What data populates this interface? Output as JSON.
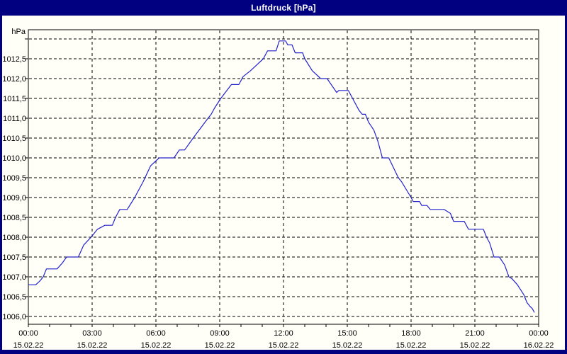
{
  "window": {
    "title": "Luftdruck [hPa]"
  },
  "colors": {
    "frame": "#000080",
    "titlebar_bg": "#000080",
    "title_text": "#ffffff",
    "panel_bg": "#fffff8",
    "grid": "#000000",
    "axis": "#000000",
    "label_text": "#000000",
    "series_line": "#2222cc"
  },
  "chart_data": {
    "type": "line",
    "title": "Luftdruck [hPa]",
    "unit_label": "hPa",
    "grid": true,
    "legend_position": "none",
    "y_axis": {
      "ylim_gridlines": [
        1006.0,
        1013.0
      ],
      "step": 0.5,
      "decimal_separator": ",",
      "ticks": [
        {
          "value": 1013.0,
          "label": ""
        },
        {
          "value": 1012.5,
          "label": "1012,5"
        },
        {
          "value": 1012.0,
          "label": "1012,0"
        },
        {
          "value": 1011.5,
          "label": "1011,5"
        },
        {
          "value": 1011.0,
          "label": "1011,0"
        },
        {
          "value": 1010.5,
          "label": "1010,5"
        },
        {
          "value": 1010.0,
          "label": "1010,0"
        },
        {
          "value": 1009.5,
          "label": "1009,5"
        },
        {
          "value": 1009.0,
          "label": "1009,0"
        },
        {
          "value": 1008.5,
          "label": "1008,5"
        },
        {
          "value": 1008.0,
          "label": "1008,0"
        },
        {
          "value": 1007.5,
          "label": "1007,5"
        },
        {
          "value": 1007.0,
          "label": "1007,0"
        },
        {
          "value": 1006.5,
          "label": "1006,5"
        },
        {
          "value": 1006.0,
          "label": "1006,0"
        }
      ]
    },
    "x_axis": {
      "hours_span": 24,
      "minor_tick_hours": 1,
      "major_tick_hours": 3,
      "major_ticks": [
        {
          "hour": 0,
          "time": "00:00",
          "date": "15.02.22"
        },
        {
          "hour": 3,
          "time": "03:00",
          "date": "15.02.22"
        },
        {
          "hour": 6,
          "time": "06:00",
          "date": "15.02.22"
        },
        {
          "hour": 9,
          "time": "09:00",
          "date": "15.02.22"
        },
        {
          "hour": 12,
          "time": "12:00",
          "date": "15.02.22"
        },
        {
          "hour": 15,
          "time": "15:00",
          "date": "15.02.22"
        },
        {
          "hour": 18,
          "time": "18:00",
          "date": "15.02.22"
        },
        {
          "hour": 21,
          "time": "21:00",
          "date": "15.02.22"
        },
        {
          "hour": 24,
          "time": "00:00",
          "date": "16.02.22"
        }
      ]
    },
    "series": [
      {
        "name": "Luftdruck",
        "color": "#2222cc",
        "points_hour_hpa": [
          [
            0.0,
            1006.8
          ],
          [
            0.35,
            1006.8
          ],
          [
            0.55,
            1006.9
          ],
          [
            0.7,
            1007.0
          ],
          [
            0.85,
            1007.2
          ],
          [
            1.35,
            1007.2
          ],
          [
            1.6,
            1007.35
          ],
          [
            1.8,
            1007.5
          ],
          [
            2.35,
            1007.5
          ],
          [
            2.6,
            1007.8
          ],
          [
            2.95,
            1008.0
          ],
          [
            3.25,
            1008.2
          ],
          [
            3.6,
            1008.3
          ],
          [
            3.95,
            1008.3
          ],
          [
            4.1,
            1008.5
          ],
          [
            4.3,
            1008.7
          ],
          [
            4.65,
            1008.7
          ],
          [
            5.0,
            1009.0
          ],
          [
            5.4,
            1009.4
          ],
          [
            5.75,
            1009.8
          ],
          [
            6.15,
            1010.0
          ],
          [
            6.85,
            1010.0
          ],
          [
            7.1,
            1010.2
          ],
          [
            7.35,
            1010.2
          ],
          [
            7.75,
            1010.5
          ],
          [
            8.1,
            1010.75
          ],
          [
            8.45,
            1011.0
          ],
          [
            8.6,
            1011.1
          ],
          [
            8.75,
            1011.25
          ],
          [
            9.05,
            1011.5
          ],
          [
            9.55,
            1011.85
          ],
          [
            9.9,
            1011.85
          ],
          [
            10.1,
            1012.05
          ],
          [
            10.45,
            1012.2
          ],
          [
            10.75,
            1012.35
          ],
          [
            11.05,
            1012.5
          ],
          [
            11.25,
            1012.7
          ],
          [
            11.65,
            1012.7
          ],
          [
            11.8,
            1012.95
          ],
          [
            12.1,
            1012.95
          ],
          [
            12.2,
            1012.85
          ],
          [
            12.4,
            1012.85
          ],
          [
            12.55,
            1012.65
          ],
          [
            12.9,
            1012.65
          ],
          [
            13.0,
            1012.5
          ],
          [
            13.35,
            1012.2
          ],
          [
            13.75,
            1012.0
          ],
          [
            14.05,
            1012.0
          ],
          [
            14.5,
            1011.65
          ],
          [
            14.6,
            1011.7
          ],
          [
            15.05,
            1011.7
          ],
          [
            15.25,
            1011.5
          ],
          [
            15.55,
            1011.2
          ],
          [
            15.7,
            1011.1
          ],
          [
            15.85,
            1011.1
          ],
          [
            16.0,
            1010.9
          ],
          [
            16.25,
            1010.7
          ],
          [
            16.45,
            1010.4
          ],
          [
            16.65,
            1010.0
          ],
          [
            16.95,
            1010.0
          ],
          [
            17.4,
            1009.5
          ],
          [
            17.55,
            1009.4
          ],
          [
            18.0,
            1009.0
          ],
          [
            18.1,
            1008.9
          ],
          [
            18.4,
            1008.9
          ],
          [
            18.5,
            1008.8
          ],
          [
            18.75,
            1008.8
          ],
          [
            18.9,
            1008.7
          ],
          [
            19.55,
            1008.7
          ],
          [
            19.85,
            1008.6
          ],
          [
            20.0,
            1008.4
          ],
          [
            20.5,
            1008.4
          ],
          [
            20.7,
            1008.2
          ],
          [
            21.4,
            1008.2
          ],
          [
            21.55,
            1008.0
          ],
          [
            21.7,
            1007.85
          ],
          [
            21.9,
            1007.5
          ],
          [
            22.15,
            1007.5
          ],
          [
            22.4,
            1007.3
          ],
          [
            22.6,
            1007.0
          ],
          [
            22.75,
            1006.95
          ],
          [
            23.0,
            1006.8
          ],
          [
            23.3,
            1006.55
          ],
          [
            23.45,
            1006.35
          ],
          [
            23.6,
            1006.25
          ],
          [
            23.7,
            1006.2
          ],
          [
            23.8,
            1006.1
          ]
        ]
      }
    ]
  }
}
